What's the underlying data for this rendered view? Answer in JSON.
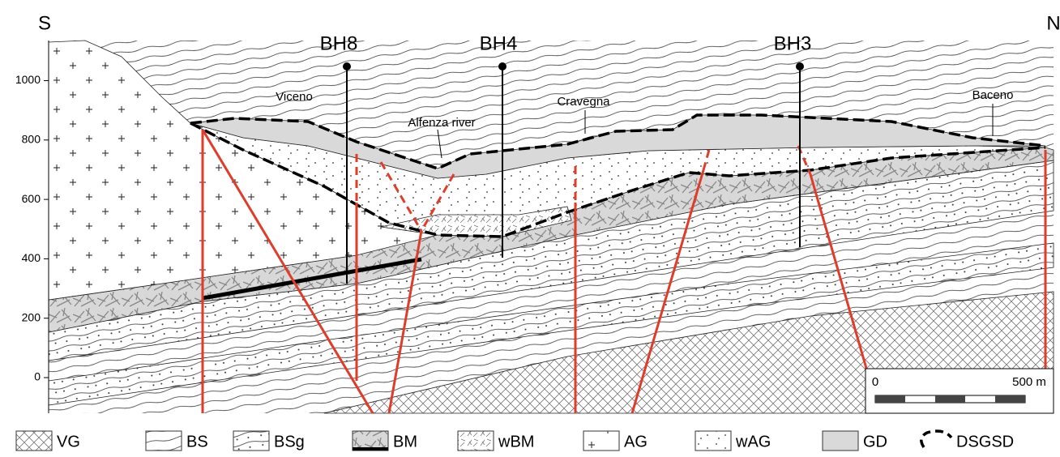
{
  "orientation": {
    "left": "S",
    "right": "N"
  },
  "elevation_axis": {
    "ylim": [
      -120,
      1135
    ],
    "ticks": [
      0,
      200,
      400,
      600,
      800,
      1000
    ]
  },
  "boreholes": [
    "BH8",
    "BH4",
    "BH3"
  ],
  "places": [
    "Viceno",
    "Alfenza river",
    "Cravegna",
    "Baceno"
  ],
  "scale_bar": {
    "start": "0",
    "end": "500 m"
  },
  "legend": [
    "VG",
    "BS",
    "BSg",
    "BM",
    "wBM",
    "AG",
    "wAG",
    "GD",
    "DSGSD"
  ]
}
